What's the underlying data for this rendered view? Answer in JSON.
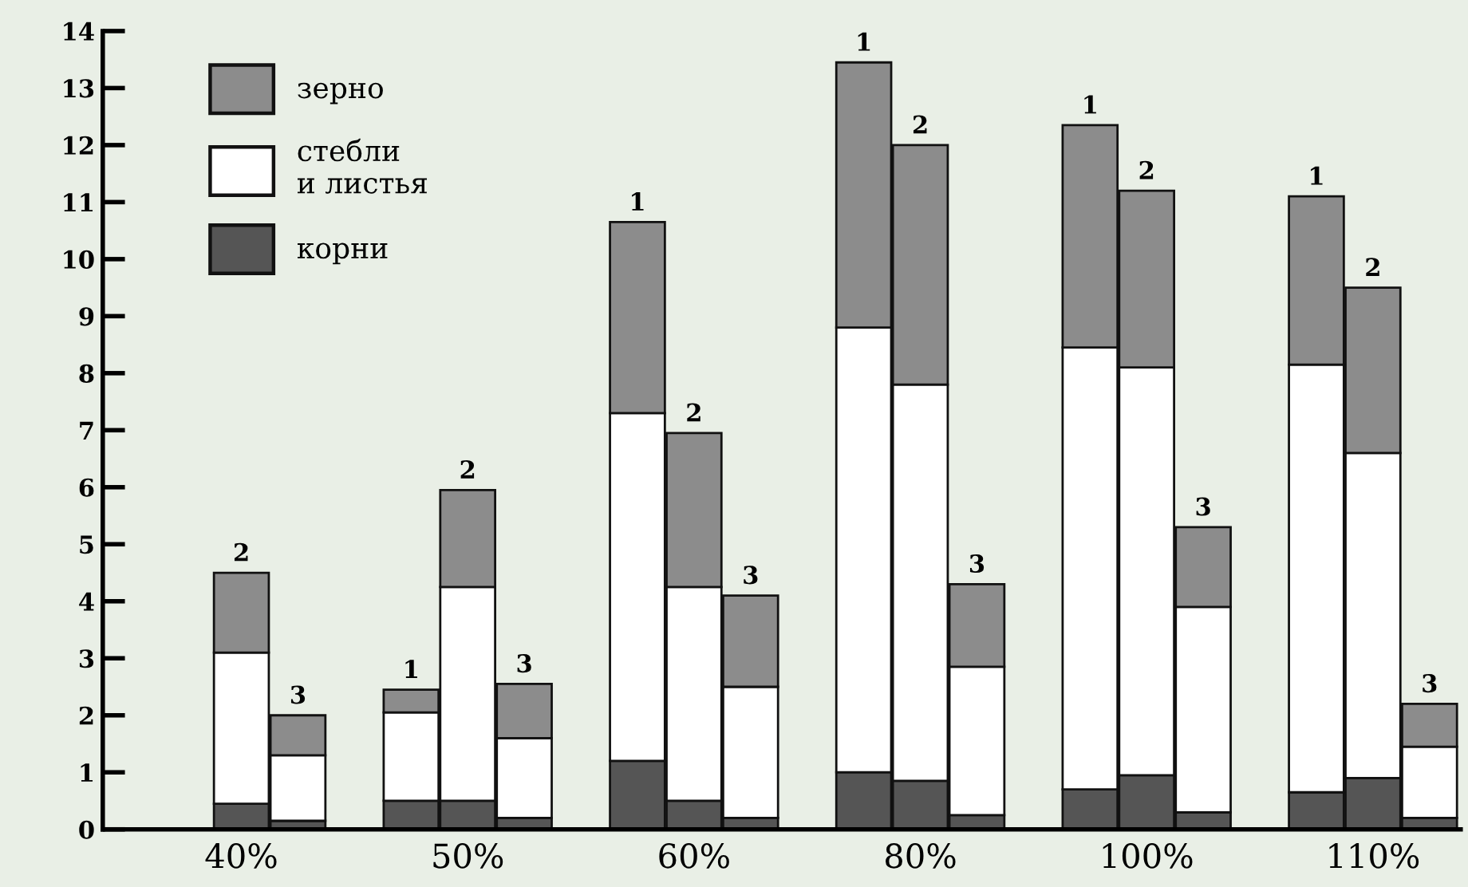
{
  "chart_data": {
    "type": "bar",
    "stacked": true,
    "categories": [
      null,
      "40%",
      null,
      null,
      null,
      "50%",
      null,
      null,
      null,
      "60%",
      null,
      null,
      null,
      "80%",
      null,
      null,
      null,
      "100%",
      null,
      null,
      null,
      "110%",
      null
    ],
    "series": [
      {
        "name": "корни",
        "color": "#555555",
        "values": [
          null,
          0.45,
          0.15,
          null,
          0.5,
          0.5,
          0.2,
          null,
          1.2,
          0.5,
          0.2,
          null,
          1.0,
          0.85,
          0.25,
          null,
          0.7,
          0.95,
          0.3,
          null,
          0.65,
          0.9,
          0.2
        ]
      },
      {
        "name": "стебли\nи листья",
        "color": "#ffffff",
        "values": [
          null,
          2.65,
          1.15,
          null,
          1.55,
          3.75,
          1.4,
          null,
          6.1,
          3.75,
          2.3,
          null,
          7.8,
          6.95,
          2.6,
          null,
          7.75,
          7.15,
          3.6,
          null,
          7.5,
          5.7,
          1.25
        ]
      },
      {
        "name": "зерно",
        "color": "#8c8c8c",
        "values": [
          null,
          1.4,
          0.7,
          null,
          0.4,
          1.7,
          0.95,
          null,
          3.35,
          2.7,
          1.6,
          null,
          4.65,
          4.2,
          1.45,
          null,
          3.9,
          3.1,
          1.4,
          null,
          2.95,
          2.9,
          0.75
        ]
      }
    ],
    "annotations": [
      "2",
      "3",
      "1",
      "2",
      "3",
      "1",
      "2",
      "3",
      "1",
      "2",
      "3",
      "1",
      "2",
      "3",
      "1",
      "2",
      "3"
    ],
    "ylim": [
      0,
      14
    ],
    "yticks": [
      0,
      1,
      2,
      3,
      4,
      5,
      6,
      7,
      8,
      9,
      10,
      11,
      12,
      13,
      14
    ],
    "grid": false,
    "legend": "top left"
  }
}
